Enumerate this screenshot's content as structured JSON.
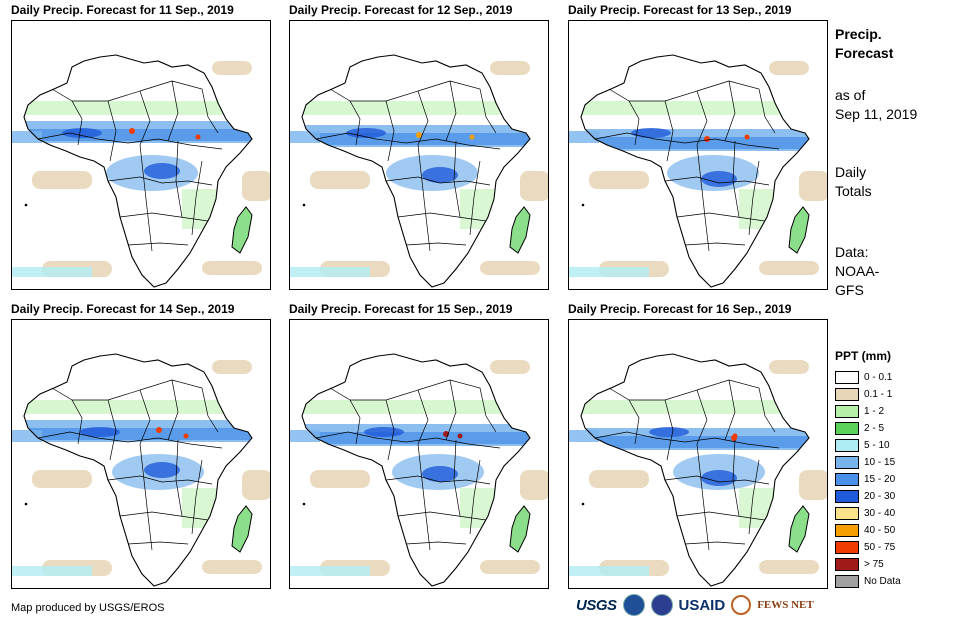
{
  "panels": [
    {
      "title": "Daily Precip. Forecast for 11 Sep., 2019"
    },
    {
      "title": "Daily Precip. Forecast for 12 Sep., 2019"
    },
    {
      "title": "Daily Precip. Forecast for 13 Sep., 2019"
    },
    {
      "title": "Daily Precip. Forecast for 14 Sep., 2019"
    },
    {
      "title": "Daily Precip. Forecast for 15 Sep., 2019"
    },
    {
      "title": "Daily Precip. Forecast for 16 Sep., 2019"
    }
  ],
  "side": {
    "title_line1": "Precip.",
    "title_line2": "Forecast",
    "asof_line1": "as of",
    "asof_line2": "Sep 11, 2019",
    "totals_line1": "Daily",
    "totals_line2": "Totals",
    "data_line1": "Data:",
    "data_line2": "NOAA-",
    "data_line3": "GFS"
  },
  "legend": {
    "title": "PPT (mm)",
    "items": [
      {
        "label": "0 - 0.1",
        "color": "#ffffff"
      },
      {
        "label": "0.1 - 1",
        "color": "#e8d6b8"
      },
      {
        "label": "1 - 2",
        "color": "#b4f0a8"
      },
      {
        "label": "2 - 5",
        "color": "#5ad25a"
      },
      {
        "label": "5 - 10",
        "color": "#b0ecf4"
      },
      {
        "label": "10 - 15",
        "color": "#78b4ec"
      },
      {
        "label": "15 - 20",
        "color": "#4a90e8"
      },
      {
        "label": "20 - 30",
        "color": "#1f5ad8"
      },
      {
        "label": "30 - 40",
        "color": "#fae28a"
      },
      {
        "label": "40 - 50",
        "color": "#f5a000"
      },
      {
        "label": "50 - 75",
        "color": "#f03c00"
      },
      {
        "label": "> 75",
        "color": "#a01a1a"
      },
      {
        "label": "No Data",
        "color": "#a0a0a0"
      }
    ]
  },
  "footer": {
    "credit": "Map produced by USGS/EROS",
    "logo_usgs": "USGS",
    "logo_usaid": "USAID",
    "logo_fews": "FEWS NET"
  }
}
